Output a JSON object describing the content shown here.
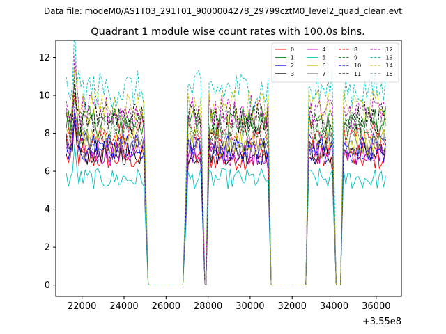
{
  "chart_data": {
    "type": "line",
    "file_title": "Data file: modeM0/AS1T03_291T01_9000004278_29799cztM0_level2_quad_clean.evt",
    "title": "Quadrant 1 module wise count rates with 100.0s bins.",
    "xlabel": "",
    "ylabel": "",
    "x_offset_label": "+3.55e8",
    "xlim": [
      20750,
      37200
    ],
    "ylim": [
      -0.6,
      12.9
    ],
    "x_ticks": [
      22000,
      24000,
      26000,
      28000,
      30000,
      32000,
      34000,
      36000
    ],
    "x_tick_labels": [
      "22000",
      "24000",
      "26000",
      "28000",
      "30000",
      "32000",
      "34000",
      "36000"
    ],
    "y_ticks": [
      0,
      2,
      4,
      6,
      8,
      10,
      12
    ],
    "y_tick_labels": [
      "0",
      "2",
      "4",
      "6",
      "8",
      "10",
      "12"
    ],
    "legend_position": "top-right",
    "bin_seconds": 100,
    "segments": [
      {
        "start": 21250,
        "end": 25000
      },
      {
        "start": 26950,
        "end": 27700
      },
      {
        "start": 28050,
        "end": 30850
      },
      {
        "start": 32800,
        "end": 33950
      },
      {
        "start": 34450,
        "end": 36500
      }
    ],
    "series": [
      {
        "name": "0",
        "color": "#ff0000",
        "dash": "solid",
        "level": 6.7
      },
      {
        "name": "1",
        "color": "#008000",
        "dash": "solid",
        "level": 8.6
      },
      {
        "name": "2",
        "color": "#0000ff",
        "dash": "solid",
        "level": 7.3
      },
      {
        "name": "3",
        "color": "#000000",
        "dash": "solid",
        "level": 7.0
      },
      {
        "name": "4",
        "color": "#bf00bf",
        "dash": "solid",
        "level": 7.0
      },
      {
        "name": "5",
        "color": "#00bfbf",
        "dash": "solid",
        "level": 5.6
      },
      {
        "name": "6",
        "color": "#bfbf00",
        "dash": "solid",
        "level": 7.6
      },
      {
        "name": "7",
        "color": "#808080",
        "dash": "solid",
        "level": 7.4
      },
      {
        "name": "8",
        "color": "#ff0000",
        "dash": "dashed",
        "level": 7.9
      },
      {
        "name": "9",
        "color": "#008000",
        "dash": "dashed",
        "level": 8.5
      },
      {
        "name": "10",
        "color": "#0000ff",
        "dash": "dashed",
        "level": 7.1
      },
      {
        "name": "11",
        "color": "#000000",
        "dash": "dashed",
        "level": 8.8
      },
      {
        "name": "12",
        "color": "#bf00bf",
        "dash": "dashed",
        "level": 9.1
      },
      {
        "name": "13",
        "color": "#00bfbf",
        "dash": "dashed",
        "level": 10.3
      },
      {
        "name": "14",
        "color": "#bfbf00",
        "dash": "dashed",
        "level": 9.4
      },
      {
        "name": "15",
        "color": "#808080",
        "dash": "dashed",
        "level": 8.2
      }
    ]
  }
}
